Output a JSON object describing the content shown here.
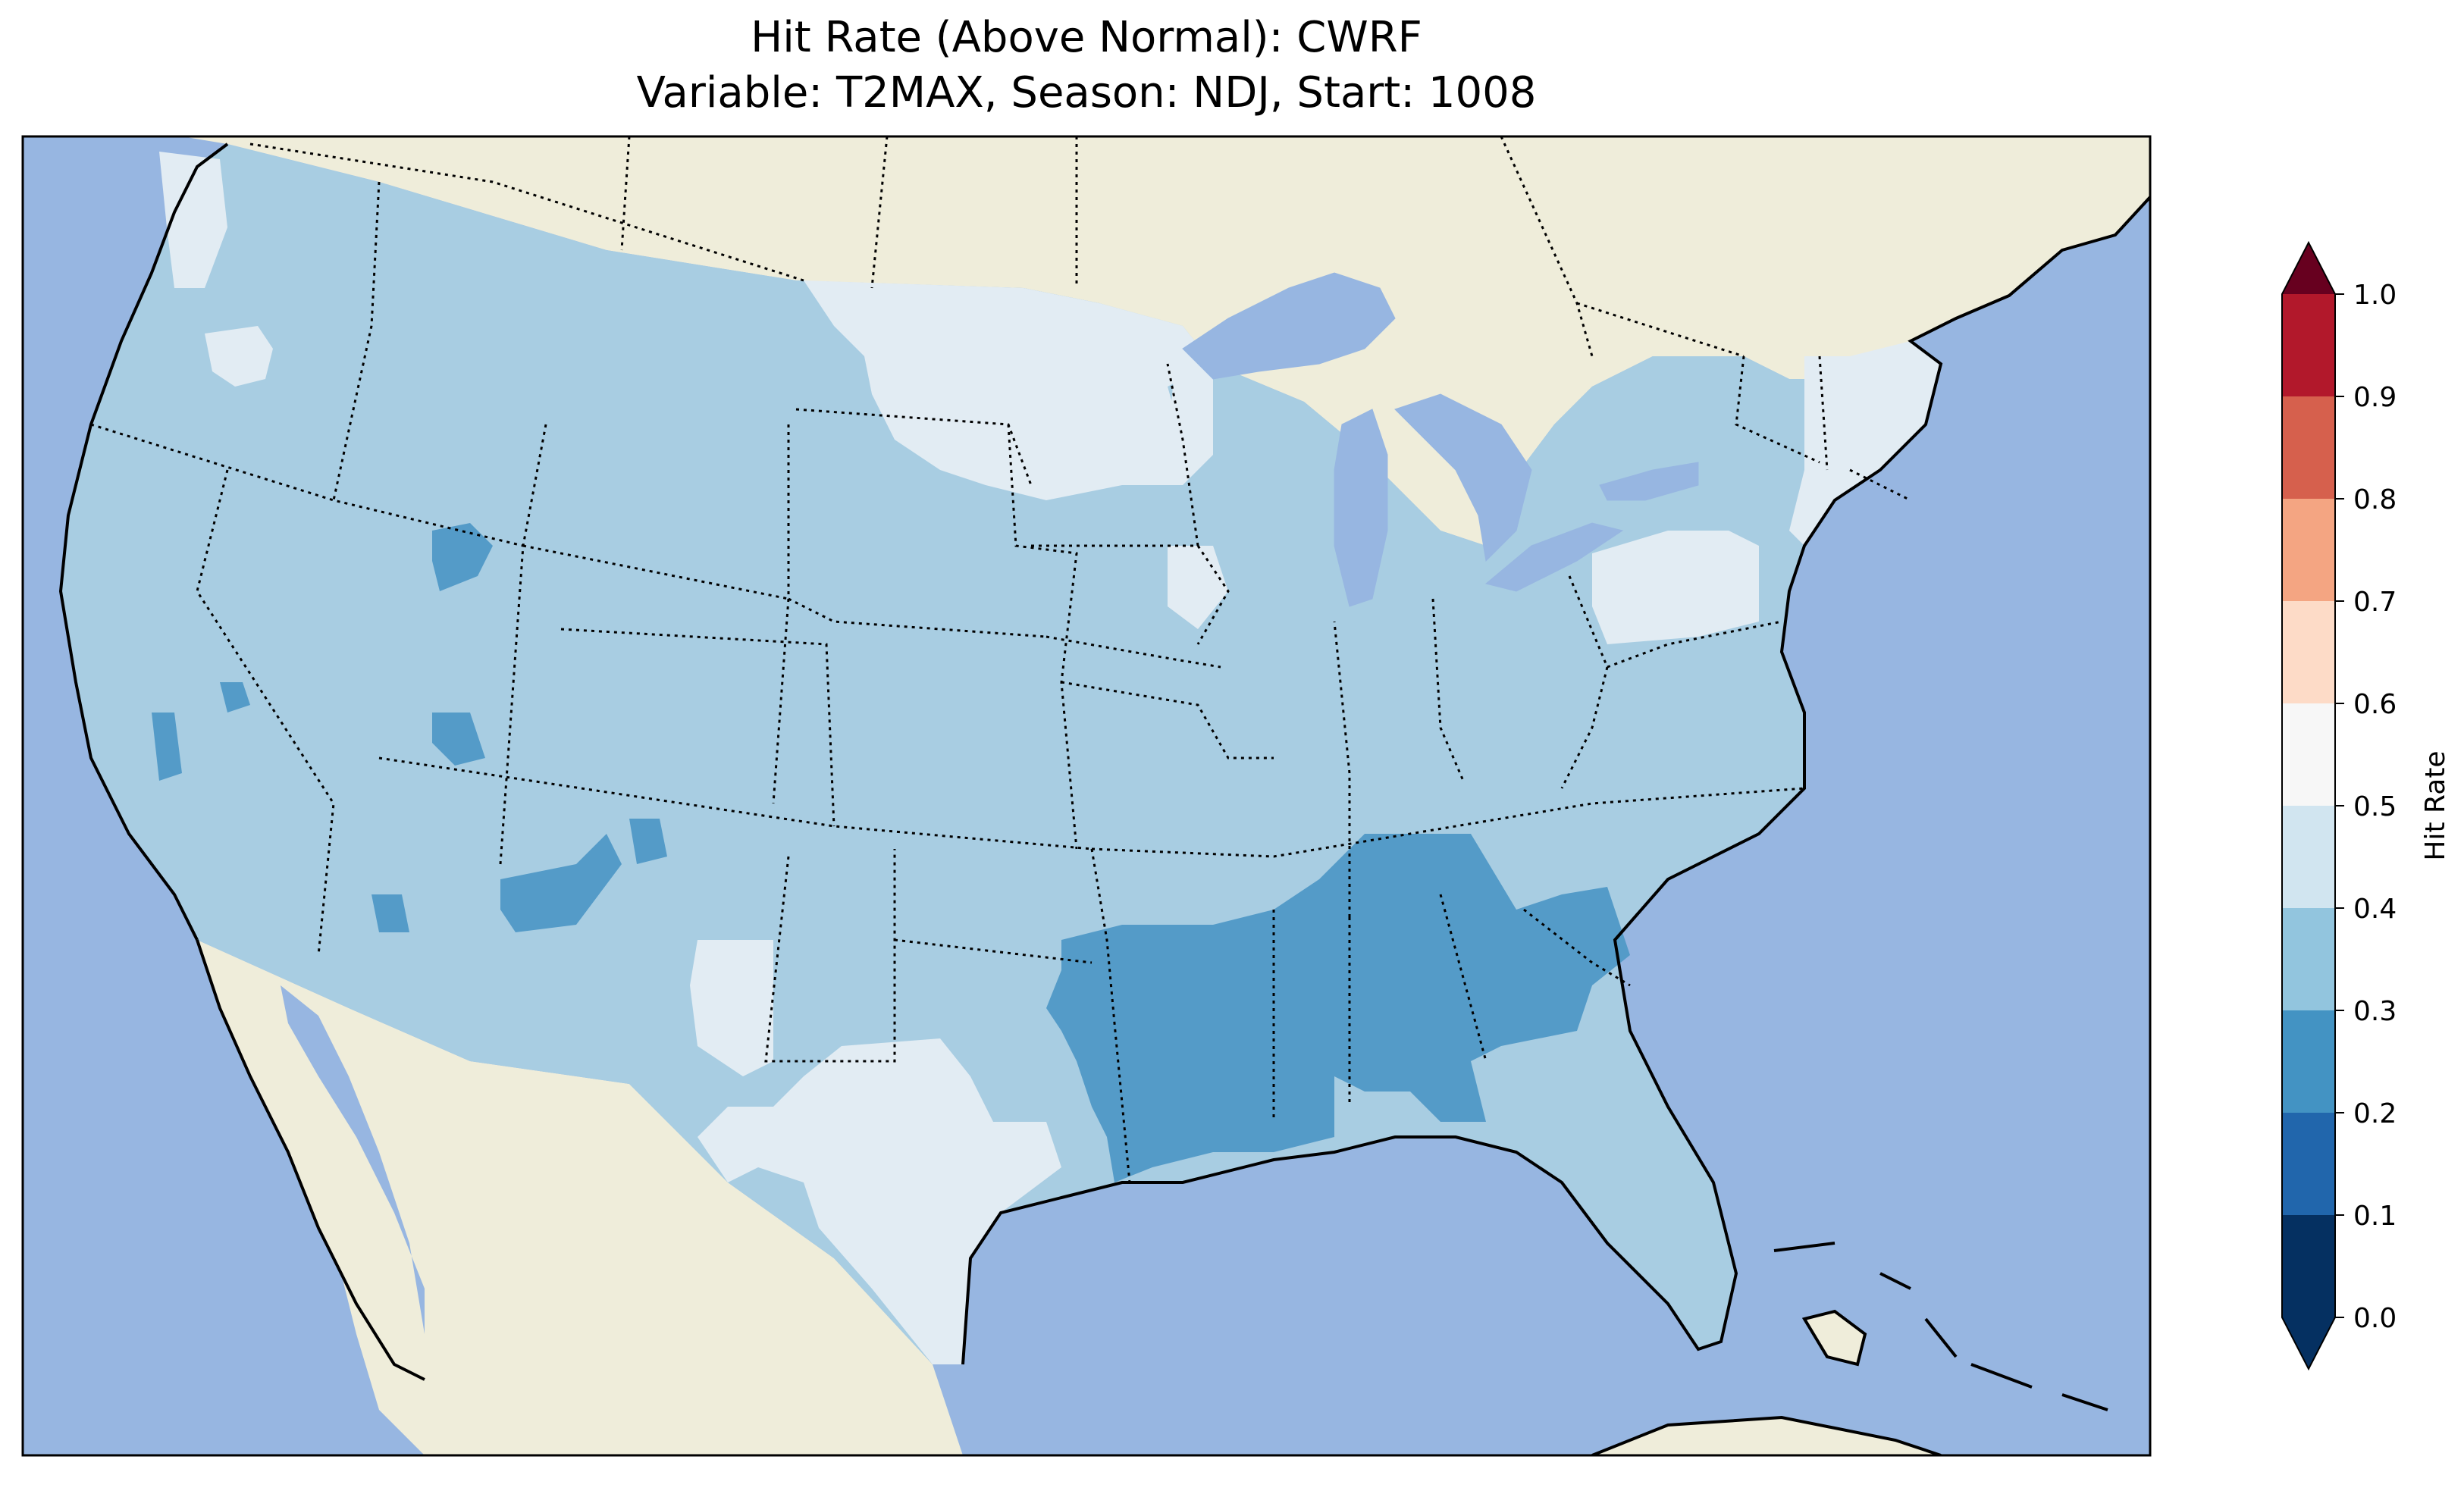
{
  "figure": {
    "title_line1": "Hit Rate (Above Normal): CWRF",
    "title_line2": "Variable: T2MAX, Season: NDJ, Start: 1008"
  },
  "map": {
    "ocean_color": "#97b6e1",
    "land_color": "#efedda",
    "border_style": "dotted state/national boundaries, solid coastlines",
    "regions": [
      {
        "name": "conus-base",
        "bin": "0.3-0.4"
      },
      {
        "name": "northern-plains-minnesota",
        "bin": "0.4-0.5"
      },
      {
        "name": "oregon-cascades",
        "bin": "0.4-0.5"
      },
      {
        "name": "washington-coast",
        "bin": "0.4-0.5"
      },
      {
        "name": "west-texas",
        "bin": "0.4-0.5"
      },
      {
        "name": "south-texas",
        "bin": "0.4-0.5"
      },
      {
        "name": "new-york-pennsylvania",
        "bin": "0.4-0.5"
      },
      {
        "name": "new-england",
        "bin": "0.4-0.5"
      },
      {
        "name": "iowa-illinois",
        "bin": "0.4-0.5"
      },
      {
        "name": "gulf-coast-southeast",
        "bin": "0.2-0.3"
      },
      {
        "name": "georgia",
        "bin": "0.2-0.3"
      },
      {
        "name": "utah-patches",
        "bin": "0.2-0.3"
      },
      {
        "name": "new-mexico-patches",
        "bin": "0.2-0.3"
      },
      {
        "name": "california-patch",
        "bin": "0.2-0.3"
      }
    ]
  },
  "colorbar": {
    "label": "Hit Rate",
    "ticks": [
      "0.0",
      "0.1",
      "0.2",
      "0.3",
      "0.4",
      "0.5",
      "0.6",
      "0.7",
      "0.8",
      "0.9",
      "1.0"
    ],
    "bins": [
      {
        "range": [
          0.0,
          0.1
        ],
        "color": "#053061"
      },
      {
        "range": [
          0.1,
          0.2
        ],
        "color": "#2166ac"
      },
      {
        "range": [
          0.2,
          0.3
        ],
        "color": "#4393c3"
      },
      {
        "range": [
          0.3,
          0.4
        ],
        "color": "#92c5de"
      },
      {
        "range": [
          0.4,
          0.5
        ],
        "color": "#d1e5f0"
      },
      {
        "range": [
          0.5,
          0.6
        ],
        "color": "#f7f7f7"
      },
      {
        "range": [
          0.6,
          0.7
        ],
        "color": "#fddbc7"
      },
      {
        "range": [
          0.7,
          0.8
        ],
        "color": "#f4a582"
      },
      {
        "range": [
          0.8,
          0.9
        ],
        "color": "#d6604d"
      },
      {
        "range": [
          0.9,
          1.0
        ],
        "color": "#b2182b"
      }
    ],
    "under_color": "#053061",
    "over_color": "#67001f",
    "extend": "both"
  },
  "display_colors": {
    "0.2-0.3": "#549bc8",
    "0.3-0.4": "#a8cde2",
    "0.4-0.5": "#e2ecf3"
  }
}
